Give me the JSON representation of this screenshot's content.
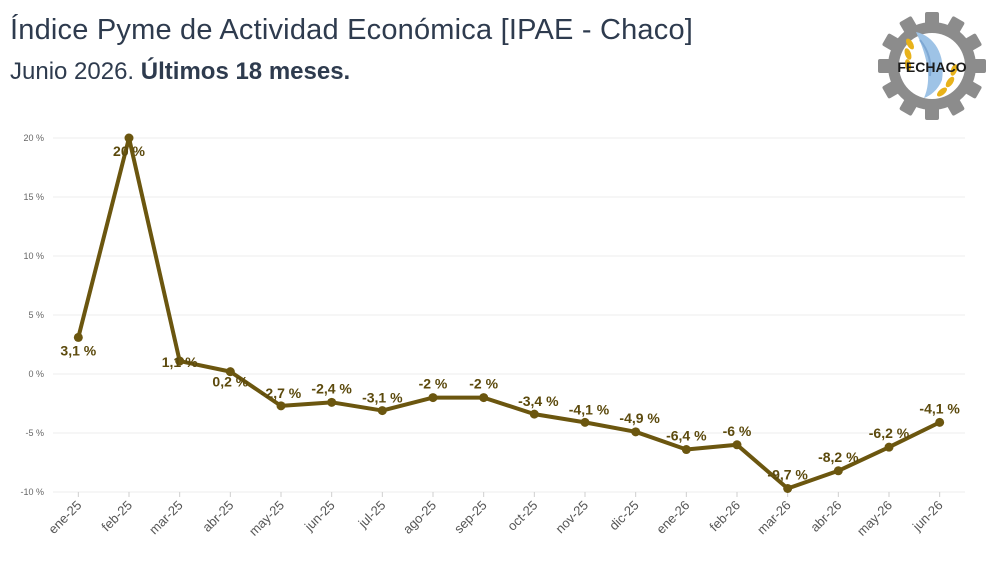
{
  "header": {
    "title": "Índice Pyme de Actividad Económica [IPAE - Chaco]",
    "subtitle_plain": "Junio 2026. ",
    "subtitle_bold": "Últimos 18 meses."
  },
  "logo": {
    "text": "FECHACO",
    "gear_color": "#8c8c8c",
    "wheat_color": "#e8b21a",
    "wing_color": "#9ec3e6"
  },
  "colors": {
    "series": "#6b560f",
    "label": "#5c4a0d",
    "grid": "#ececec"
  },
  "chart_data": {
    "type": "line",
    "title": "Índice Pyme de Actividad Económica [IPAE - Chaco]",
    "categories": [
      "ene-25",
      "feb-25",
      "mar-25",
      "abr-25",
      "may-25",
      "jun-25",
      "jul-25",
      "ago-25",
      "sep-25",
      "oct-25",
      "nov-25",
      "dic-25",
      "ene-26",
      "feb-26",
      "mar-26",
      "abr-26",
      "may-26",
      "jun-26"
    ],
    "values": [
      3.1,
      20,
      1.1,
      0.2,
      -2.7,
      -2.4,
      -3.1,
      -2,
      -2,
      -3.4,
      -4.1,
      -4.9,
      -6.4,
      -6,
      -9.7,
      -8.2,
      -6.2,
      -4.1
    ],
    "data_labels": [
      "3,1 %",
      "20 %",
      "1,1 %",
      "0,2 %",
      "-2,7 %",
      "-2,4 %",
      "-3,1 %",
      "-2 %",
      "-2 %",
      "-3,4 %",
      "-4,1 %",
      "-4,9 %",
      "-6,4 %",
      "-6 %",
      "-9,7 %",
      "-8,2 %",
      "-6,2 %",
      "-4,1 %"
    ],
    "y_ticks": [
      20,
      15,
      10,
      5,
      0,
      -5,
      -10
    ],
    "y_tick_labels": [
      "20 %",
      "15 %",
      "10 %",
      "5 %",
      "0 %",
      "-5 %",
      "-10 %"
    ],
    "ylim": [
      -10,
      20
    ],
    "grid": true,
    "legend": "none"
  }
}
